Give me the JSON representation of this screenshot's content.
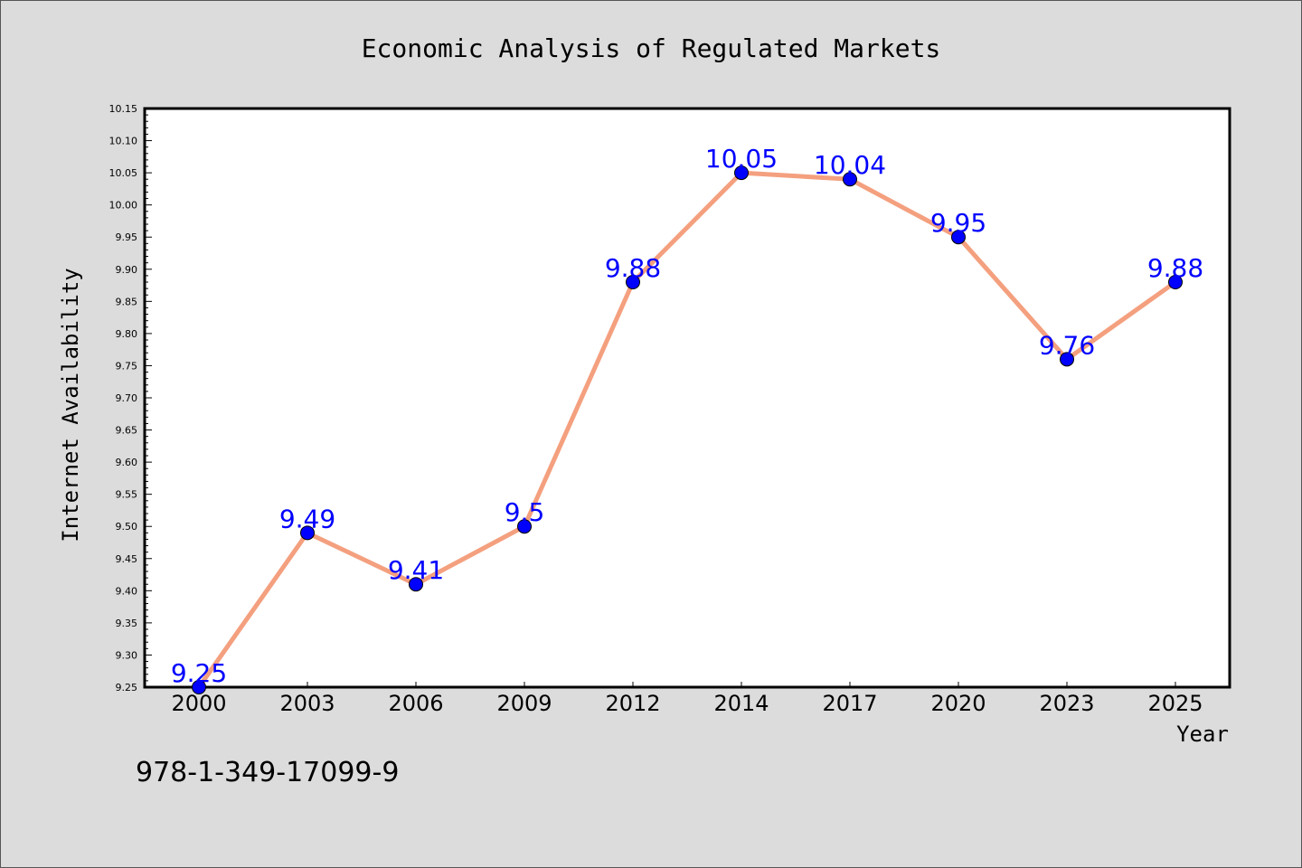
{
  "chart_data": {
    "type": "line",
    "title": "Economic Analysis of Regulated Markets",
    "xlabel": "Year",
    "ylabel": "Internet Availability",
    "categories": [
      "2000",
      "2003",
      "2006",
      "2009",
      "2012",
      "2014",
      "2017",
      "2020",
      "2023",
      "2025"
    ],
    "series": [
      {
        "values": [
          9.25,
          9.49,
          9.41,
          9.5,
          9.88,
          10.05,
          10.04,
          9.95,
          9.76,
          9.88
        ],
        "data_labels": [
          "9.25",
          "9.49",
          "9.41",
          "9.5",
          "9.88",
          "10.05",
          "10.04",
          "9.95",
          "9.76",
          "9.88"
        ],
        "line_color": "#f4a07f",
        "marker_color": "#0000ff",
        "label_color": "#0000ff"
      }
    ],
    "ylim": [
      9.25,
      10.15
    ],
    "y_ticks": [
      "9.25",
      "9.30",
      "9.35",
      "9.40",
      "9.45",
      "9.50",
      "9.55",
      "9.60",
      "9.65",
      "9.70",
      "9.75",
      "9.80",
      "9.85",
      "9.90",
      "9.95",
      "10.00",
      "10.05",
      "10.10",
      "10.15"
    ],
    "grid": false,
    "legend": "none"
  },
  "annotation": "978-1-349-17099-9",
  "colors": {
    "background": "#dcdcdc",
    "plot_area": "#ffffff",
    "axis": "#000000"
  }
}
